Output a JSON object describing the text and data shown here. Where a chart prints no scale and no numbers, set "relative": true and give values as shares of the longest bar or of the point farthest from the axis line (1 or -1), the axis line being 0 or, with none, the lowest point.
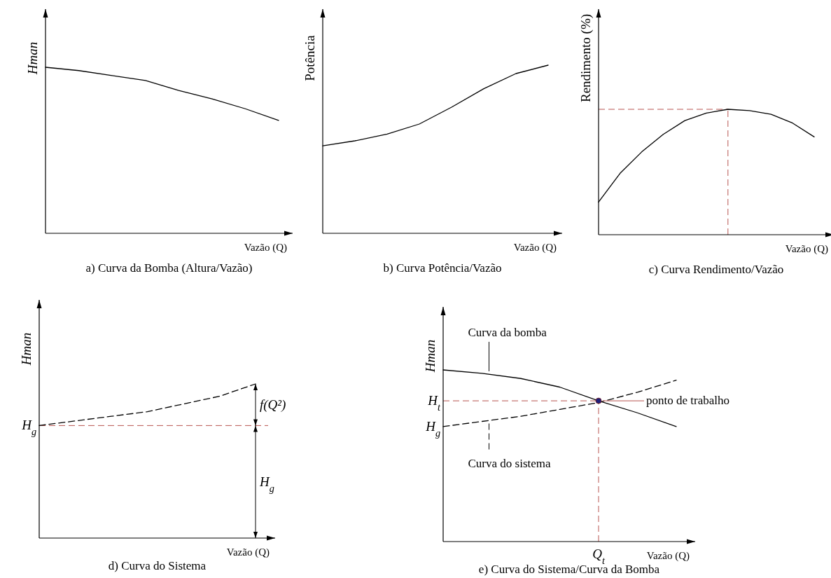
{
  "chart_data": [
    {
      "type": "line",
      "relative": true,
      "title": "a) Curva da Bomba (Altura/Vazão)",
      "xlabel": "Vazão (Q)",
      "ylabel": "Hman",
      "categories": [
        null,
        null,
        null,
        null,
        null,
        null,
        null,
        null
      ],
      "series": [
        {
          "color": "#000000",
          "values": [
            1,
            0.98,
            0.95,
            0.92,
            0.86,
            0.81,
            0.75,
            0.68
          ]
        }
      ]
    },
    {
      "type": "line",
      "relative": true,
      "title": "b) Curva Potência/Vazão",
      "xlabel": "Vazão (Q)",
      "ylabel": "Potência",
      "categories": [
        null,
        null,
        null,
        null,
        null,
        null,
        null,
        null
      ],
      "series": [
        {
          "color": "#000000",
          "values": [
            0.52,
            0.55,
            0.59,
            0.65,
            0.75,
            0.86,
            0.95,
            1
          ]
        }
      ]
    },
    {
      "type": "line",
      "relative": true,
      "title": "c) Curva Rendimento/Vazão",
      "xlabel": "Vazão (Q)",
      "ylabel": "Rendimento (%)",
      "categories": [
        null,
        null,
        null,
        null,
        null,
        null,
        null,
        null,
        null,
        null,
        null
      ],
      "series": [
        {
          "color": "#000000",
          "values": [
            0.26,
            0.49,
            0.66,
            0.8,
            0.91,
            0.97,
            1,
            0.99,
            0.96,
            0.89,
            0.78
          ]
        }
      ],
      "ref_lines": [
        {
          "axis": "y",
          "value": 1,
          "color": "#b85450",
          "line_style": "dashed"
        }
      ]
    },
    {
      "type": "line",
      "relative": true,
      "title": "d) Curva do Sistema",
      "xlabel": "Vazão (Q)",
      "ylabel": "Hman",
      "categories": [
        null,
        null,
        null,
        null,
        null,
        null,
        null
      ],
      "series": [
        {
          "color": "#000000",
          "line_style": "dashed",
          "values": [
            0.73,
            0.76,
            0.79,
            0.82,
            0.87,
            0.92,
            1
          ]
        }
      ],
      "ref_lines": [
        {
          "axis": "y",
          "value": 0.73,
          "label": "H$_{g}$",
          "color": "#b85450",
          "line_style": "dashed"
        }
      ],
      "annotations": [
        "f(Q²)",
        "H$_{g}$"
      ]
    },
    {
      "type": "line",
      "relative": true,
      "title": "e) Curva do Sistema/Curva da Bomba",
      "xlabel": "Vazão (Q)",
      "ylabel": "Hman",
      "categories": [
        null,
        null,
        null,
        null,
        null,
        null,
        null
      ],
      "series": [
        {
          "name": "Curva da bomba",
          "color": "#000000",
          "values": [
            1,
            0.98,
            0.95,
            0.9,
            0.82,
            0.75,
            0.67
          ]
        },
        {
          "name": "Curva do sistema",
          "color": "#000000",
          "line_style": "dashed",
          "values": [
            0.67,
            0.7,
            0.73,
            0.77,
            0.81,
            0.87,
            0.94
          ]
        }
      ],
      "ref_lines": [
        {
          "axis": "y",
          "value": 0.82,
          "label": "H$_{t}$",
          "color": "#b85450",
          "line_style": "dashed"
        }
      ],
      "annotations": [
        "ponto de trabalho",
        "H$_{g}$",
        "Q$_{t}$"
      ]
    }
  ]
}
